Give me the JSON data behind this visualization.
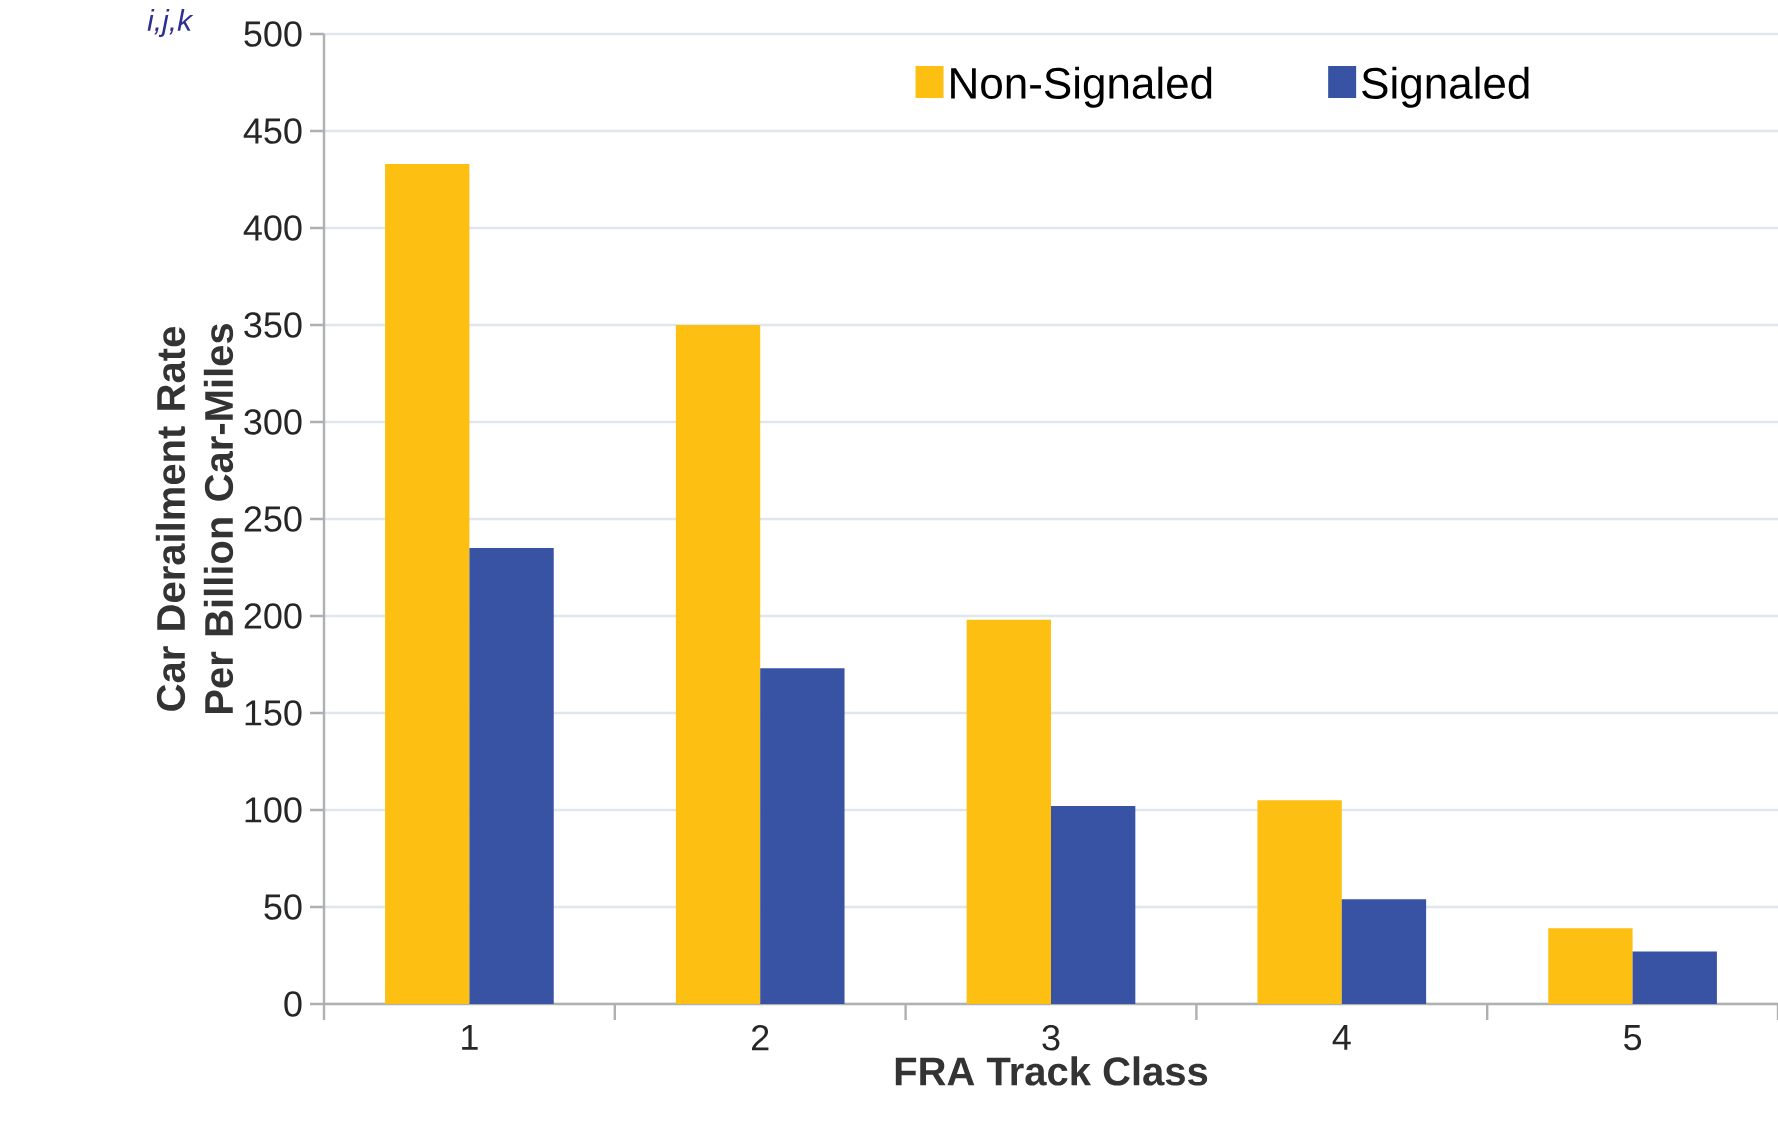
{
  "chart_data": {
    "type": "bar",
    "xlabel": "FRA Track Class",
    "ylabel": "Car Derailment Rate Per Billion Car-Miles",
    "categories": [
      "1",
      "2",
      "3",
      "4",
      "5"
    ],
    "series": [
      {
        "name": "Non-Signaled",
        "color": "#fcbf12",
        "values": [
          433,
          350,
          198,
          105,
          39
        ]
      },
      {
        "name": "Signaled",
        "color": "#3953a4",
        "values": [
          235,
          173,
          102,
          54,
          27
        ]
      }
    ],
    "ylim": [
      0,
      500
    ],
    "yticks": [
      0,
      50,
      100,
      150,
      200,
      250,
      300,
      350,
      400,
      450,
      500
    ],
    "grid": "y",
    "legend": "top",
    "annotations": [
      "i,j,k"
    ]
  }
}
